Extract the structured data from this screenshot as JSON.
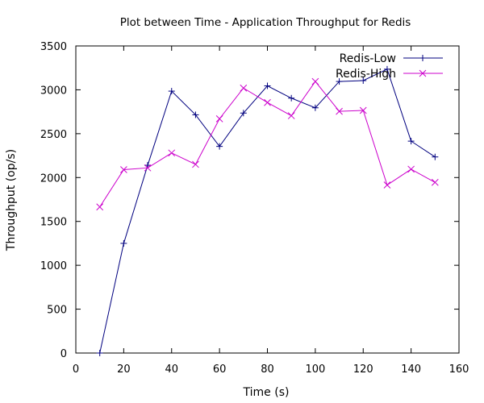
{
  "chart_data": {
    "type": "line",
    "title": "Plot between Time - Application Throughput for Redis",
    "xlabel": "Time (s)",
    "ylabel": "Throughput (op/s)",
    "xlim": [
      0,
      160
    ],
    "ylim": [
      0,
      3500
    ],
    "x_ticks": [
      0,
      20,
      40,
      60,
      80,
      100,
      120,
      140,
      160
    ],
    "y_ticks": [
      0,
      500,
      1000,
      1500,
      2000,
      2500,
      3000,
      3500
    ],
    "grid": false,
    "legend_position": "top-right",
    "series": [
      {
        "name": "Redis-Low",
        "color": "#00007f",
        "marker": "plus",
        "x": [
          10,
          20,
          30,
          40,
          50,
          60,
          70,
          80,
          90,
          100,
          110,
          120,
          130,
          140,
          150
        ],
        "y": [
          0,
          1250,
          2140,
          2985,
          2715,
          2355,
          2735,
          3045,
          2905,
          2795,
          3095,
          3105,
          3235,
          2415,
          2235
        ]
      },
      {
        "name": "Redis-High",
        "color": "#cc00cc",
        "marker": "x",
        "x": [
          10,
          20,
          30,
          40,
          50,
          60,
          70,
          80,
          90,
          100,
          110,
          120,
          130,
          140,
          150
        ],
        "y": [
          1665,
          2090,
          2110,
          2280,
          2150,
          2670,
          3020,
          2855,
          2705,
          3095,
          2755,
          2765,
          1915,
          2095,
          1945
        ]
      }
    ]
  }
}
